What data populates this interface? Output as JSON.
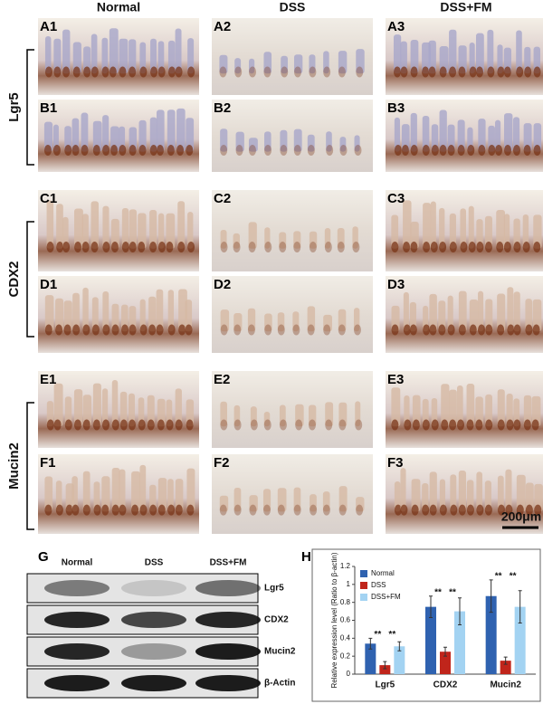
{
  "panels": {
    "columns": [
      "Normal",
      "DSS",
      "DSS+FM"
    ],
    "labels": [
      [
        "A1",
        "A2",
        "A3"
      ],
      [
        "B1",
        "B2",
        "B3"
      ],
      [
        "C1",
        "C2",
        "C3"
      ],
      [
        "D1",
        "D2",
        "D3"
      ],
      [
        "E1",
        "E2",
        "E3"
      ],
      [
        "F1",
        "F2",
        "F3"
      ]
    ],
    "markers": [
      "Lgr5",
      "CDX2",
      "Mucin2"
    ],
    "scale_bar": "200μm"
  },
  "blot": {
    "letter": "G",
    "lanes": [
      "Normal",
      "DSS",
      "DSS+FM"
    ],
    "proteins": [
      "Lgr5",
      "CDX2",
      "Mucin2",
      "β-Actin"
    ]
  },
  "chart_data": {
    "type": "bar",
    "panel_label": "H",
    "ylabel": "Relative expression level (Ratio to β-actin)",
    "categories": [
      "Lgr5",
      "CDX2",
      "Mucin2"
    ],
    "series": [
      {
        "name": "Normal",
        "color": "#2f62b0",
        "values": [
          0.34,
          0.75,
          0.87
        ],
        "errors": [
          0.06,
          0.12,
          0.18
        ]
      },
      {
        "name": "DSS",
        "color": "#c0251b",
        "values": [
          0.1,
          0.25,
          0.15
        ],
        "errors": [
          0.04,
          0.05,
          0.04
        ]
      },
      {
        "name": "DSS+FM",
        "color": "#a3d3f2",
        "values": [
          0.31,
          0.7,
          0.75
        ],
        "errors": [
          0.05,
          0.15,
          0.18
        ]
      }
    ],
    "ylim": [
      0,
      1.2
    ],
    "yticks": [
      0,
      0.2,
      0.4,
      0.6,
      0.8,
      1,
      1.2
    ],
    "legend": "upper left",
    "annotations": [
      "**",
      "**",
      "**",
      "**",
      "**",
      "**"
    ]
  }
}
